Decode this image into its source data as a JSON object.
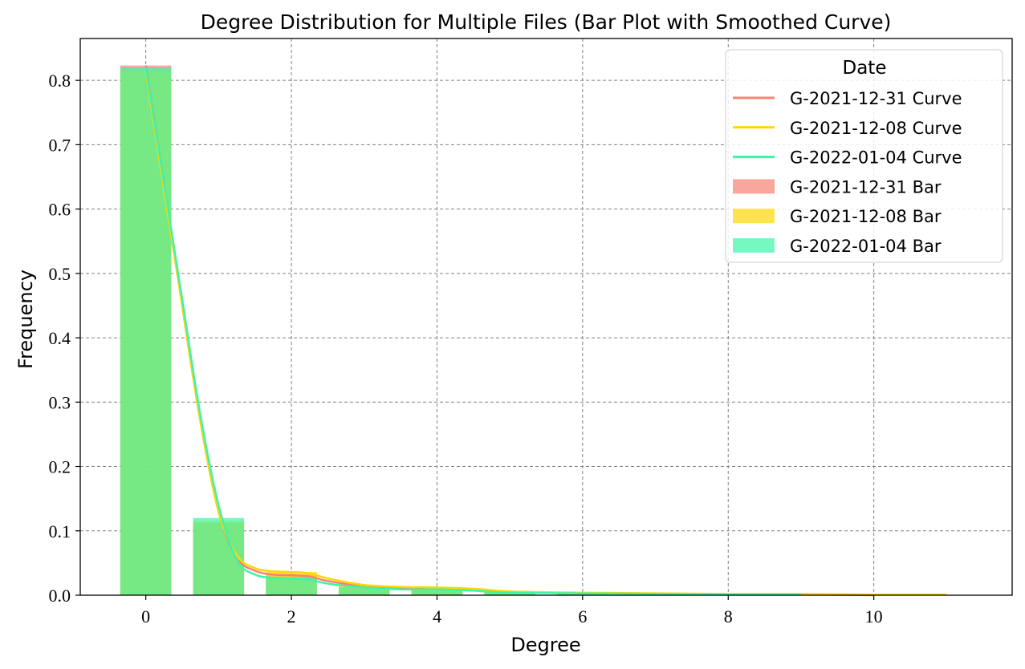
{
  "chart_data": {
    "type": "bar",
    "title": "Degree Distribution for Multiple Files (Bar Plot with Smoothed Curve)",
    "xlabel": "Degree",
    "ylabel": "Frequency",
    "xlim": [
      -0.9,
      11.9
    ],
    "ylim": [
      0,
      0.865
    ],
    "xticks": [
      0,
      2,
      4,
      6,
      8,
      10
    ],
    "yticks": [
      0.0,
      0.1,
      0.2,
      0.3,
      0.4,
      0.5,
      0.6,
      0.7,
      0.8
    ],
    "grid": true,
    "legend_title": "Date",
    "legend_position": "top-right",
    "bar_series": [
      {
        "name": "G-2021-12-31 Bar",
        "color": "#FA8072",
        "x": [
          0,
          1,
          2,
          3,
          4,
          5,
          6,
          7,
          8,
          9,
          10
        ],
        "values": [
          0.823,
          0.112,
          0.032,
          0.013,
          0.01,
          0.005,
          0.003,
          0.002,
          0.001,
          0.001,
          0.0
        ]
      },
      {
        "name": "G-2021-12-08 Bar",
        "color": "#FFD700",
        "x": [
          0,
          1,
          2,
          3,
          4,
          5,
          6,
          7,
          8,
          9,
          10
        ],
        "values": [
          0.815,
          0.115,
          0.036,
          0.015,
          0.012,
          0.006,
          0.004,
          0.003,
          0.002,
          0.002,
          0.001
        ]
      },
      {
        "name": "G-2022-01-04 Bar",
        "color": "#3CF5AA",
        "x": [
          0,
          1,
          2,
          3,
          4,
          5,
          6,
          7,
          8,
          9
        ],
        "values": [
          0.82,
          0.12,
          0.028,
          0.012,
          0.009,
          0.004,
          0.003,
          0.002,
          0.001,
          0.001
        ]
      }
    ],
    "curve_series": [
      {
        "name": "G-2021-12-31 Curve",
        "color": "#FA8072",
        "x": [
          0,
          0.25,
          0.5,
          0.75,
          1,
          1.25,
          1.5,
          1.75,
          2,
          2.25,
          2.5,
          3,
          3.5,
          4,
          4.5,
          5,
          6,
          7,
          8,
          9,
          10
        ],
        "y": [
          0.823,
          0.64,
          0.45,
          0.27,
          0.13,
          0.058,
          0.038,
          0.032,
          0.031,
          0.029,
          0.022,
          0.014,
          0.011,
          0.01,
          0.008,
          0.005,
          0.003,
          0.002,
          0.001,
          0.001,
          0.0
        ]
      },
      {
        "name": "G-2021-12-08 Curve",
        "color": "#FFD700",
        "x": [
          0,
          0.25,
          0.5,
          0.75,
          1,
          1.25,
          1.5,
          1.75,
          2,
          2.25,
          2.5,
          3,
          3.5,
          4,
          4.5,
          5,
          6,
          7,
          8,
          9,
          10,
          11
        ],
        "y": [
          0.815,
          0.63,
          0.45,
          0.27,
          0.13,
          0.062,
          0.042,
          0.037,
          0.036,
          0.034,
          0.026,
          0.016,
          0.013,
          0.012,
          0.01,
          0.006,
          0.004,
          0.003,
          0.002,
          0.002,
          0.001,
          0.001
        ]
      },
      {
        "name": "G-2022-01-04 Curve",
        "color": "#3CF5AA",
        "x": [
          0,
          0.25,
          0.5,
          0.75,
          1,
          1.25,
          1.5,
          1.75,
          2,
          2.25,
          2.5,
          3,
          3.5,
          4,
          4.5,
          5,
          6,
          7,
          8,
          9
        ],
        "y": [
          0.82,
          0.64,
          0.46,
          0.28,
          0.14,
          0.055,
          0.032,
          0.027,
          0.026,
          0.024,
          0.018,
          0.012,
          0.009,
          0.009,
          0.007,
          0.004,
          0.003,
          0.002,
          0.001,
          0.001
        ]
      }
    ]
  }
}
